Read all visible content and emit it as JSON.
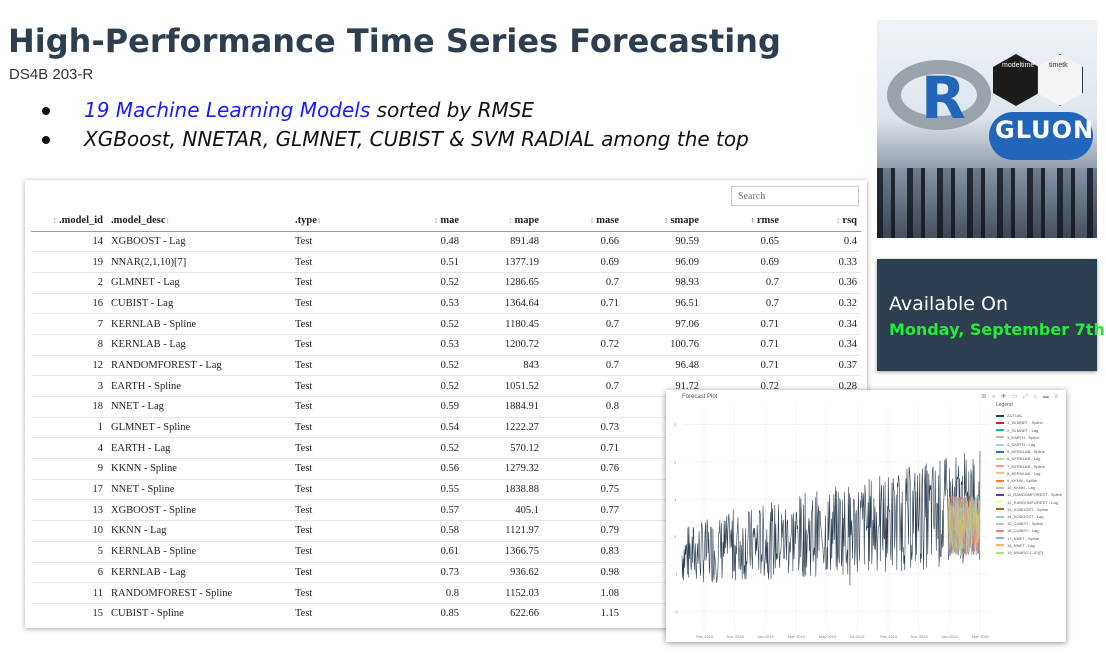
{
  "header": {
    "title": "High-Performance Time Series Forecasting",
    "subtitle": "DS4B 203-R"
  },
  "bullets": [
    {
      "highlight": "19 Machine Learning Models",
      "rest": " sorted by RMSE"
    },
    {
      "highlight": "",
      "rest": "XGBoost, NNETAR, GLMNET, CUBIST & SVM RADIAL among the top"
    }
  ],
  "table": {
    "search_placeholder": "Search",
    "columns": [
      ".model_id",
      ".model_desc",
      ".type",
      "mae",
      "mape",
      "mase",
      "smape",
      "rmse",
      "rsq"
    ],
    "rows": [
      [
        "14",
        "XGBOOST - Lag",
        "Test",
        "0.48",
        "891.48",
        "0.66",
        "90.59",
        "0.65",
        "0.4"
      ],
      [
        "19",
        "NNAR(2,1,10)[7]",
        "Test",
        "0.51",
        "1377.19",
        "0.69",
        "96.09",
        "0.69",
        "0.33"
      ],
      [
        "2",
        "GLMNET - Lag",
        "Test",
        "0.52",
        "1286.65",
        "0.7",
        "98.93",
        "0.7",
        "0.36"
      ],
      [
        "16",
        "CUBIST - Lag",
        "Test",
        "0.53",
        "1364.64",
        "0.71",
        "96.51",
        "0.7",
        "0.32"
      ],
      [
        "7",
        "KERNLAB - Spline",
        "Test",
        "0.52",
        "1180.45",
        "0.7",
        "97.06",
        "0.71",
        "0.34"
      ],
      [
        "8",
        "KERNLAB - Lag",
        "Test",
        "0.53",
        "1200.72",
        "0.72",
        "100.76",
        "0.71",
        "0.34"
      ],
      [
        "12",
        "RANDOMFOREST - Lag",
        "Test",
        "0.52",
        "843",
        "0.7",
        "96.48",
        "0.71",
        "0.37"
      ],
      [
        "3",
        "EARTH - Spline",
        "Test",
        "0.52",
        "1051.52",
        "0.7",
        "91.72",
        "0.72",
        "0.28"
      ],
      [
        "18",
        "NNET - Lag",
        "Test",
        "0.59",
        "1884.91",
        "0.8",
        "",
        "",
        ""
      ],
      [
        "1",
        "GLMNET - Spline",
        "Test",
        "0.54",
        "1222.27",
        "0.73",
        "",
        "",
        ""
      ],
      [
        "4",
        "EARTH - Lag",
        "Test",
        "0.52",
        "570.12",
        "0.71",
        "",
        "",
        ""
      ],
      [
        "9",
        "KKNN - Spline",
        "Test",
        "0.56",
        "1279.32",
        "0.76",
        "",
        "",
        ""
      ],
      [
        "17",
        "NNET - Spline",
        "Test",
        "0.55",
        "1838.88",
        "0.75",
        "",
        "",
        ""
      ],
      [
        "13",
        "XGBOOST - Spline",
        "Test",
        "0.57",
        "405.1",
        "0.77",
        "",
        "",
        ""
      ],
      [
        "10",
        "KKNN - Lag",
        "Test",
        "0.58",
        "1121.97",
        "0.79",
        "",
        "",
        ""
      ],
      [
        "5",
        "KERNLAB - Spline",
        "Test",
        "0.61",
        "1366.75",
        "0.83",
        "",
        "",
        ""
      ],
      [
        "6",
        "KERNLAB - Lag",
        "Test",
        "0.73",
        "936.62",
        "0.98",
        "",
        "",
        ""
      ],
      [
        "11",
        "RANDOMFOREST - Spline",
        "Test",
        "0.8",
        "1152.03",
        "1.08",
        "",
        "",
        ""
      ],
      [
        "15",
        "CUBIST - Spline",
        "Test",
        "0.85",
        "622.66",
        "1.15",
        "",
        "",
        ""
      ]
    ]
  },
  "hero": {
    "r_logo": "R",
    "hex1_label": "modeltime",
    "hex2_label": "timetk",
    "gluon_logo": "GLUON"
  },
  "availability": {
    "line1": "Available On",
    "line2": "Monday, September 7th",
    "date_color": "#22ee33"
  },
  "plot": {
    "title": "Forecast Plot",
    "legend_title": "Legend",
    "legend": [
      {
        "label": "ACTUAL",
        "color": "#2c3e50"
      },
      {
        "label": "1_GLMNET - Spline",
        "color": "#e31a1c"
      },
      {
        "label": "2_GLMNET - Lag",
        "color": "#18bc9c"
      },
      {
        "label": "3_EARTH - Spline",
        "color": "#ccbe93"
      },
      {
        "label": "4_EARTH - Lag",
        "color": "#a6cee3"
      },
      {
        "label": "5_KERNLAB - Spline",
        "color": "#1f78b4"
      },
      {
        "label": "6_KERNLAB - Lag",
        "color": "#b2df8a"
      },
      {
        "label": "7_KERNLAB - Spline",
        "color": "#fb9a99"
      },
      {
        "label": "8_KERNLAB - Lag",
        "color": "#fdbf6f"
      },
      {
        "label": "9_KKNN - Spline",
        "color": "#ff7f00"
      },
      {
        "label": "10_KKNN - Lag",
        "color": "#cab2d6"
      },
      {
        "label": "11_RANDOMFOREST - Spline",
        "color": "#6a3d9a"
      },
      {
        "label": "12_RANDOMFOREST - Lag",
        "color": "#ffff99"
      },
      {
        "label": "13_XGBOOST - Spline",
        "color": "#b15928"
      },
      {
        "label": "14_XGBOOST - Lag",
        "color": "#8dd3c7"
      },
      {
        "label": "15_CUBIST - Spline",
        "color": "#bebada"
      },
      {
        "label": "16_CUBIST - Lag",
        "color": "#fb8072"
      },
      {
        "label": "17_NNET - Spline",
        "color": "#80b1d3"
      },
      {
        "label": "18_NNET - Lag",
        "color": "#fdb462"
      },
      {
        "label": "19_NNAR(2,1,10)[7]",
        "color": "#b3de69"
      }
    ],
    "y_ticks": [
      "3",
      "2",
      "1",
      "0",
      "-1",
      "-2"
    ],
    "x_ticks": [
      "Sep 2018",
      "Nov 2018",
      "Jan 2019",
      "Mar 2019",
      "May 2019",
      "Jul 2019",
      "Sep 2019",
      "Nov 2019",
      "Jan 2020",
      "Mar 2020"
    ]
  }
}
